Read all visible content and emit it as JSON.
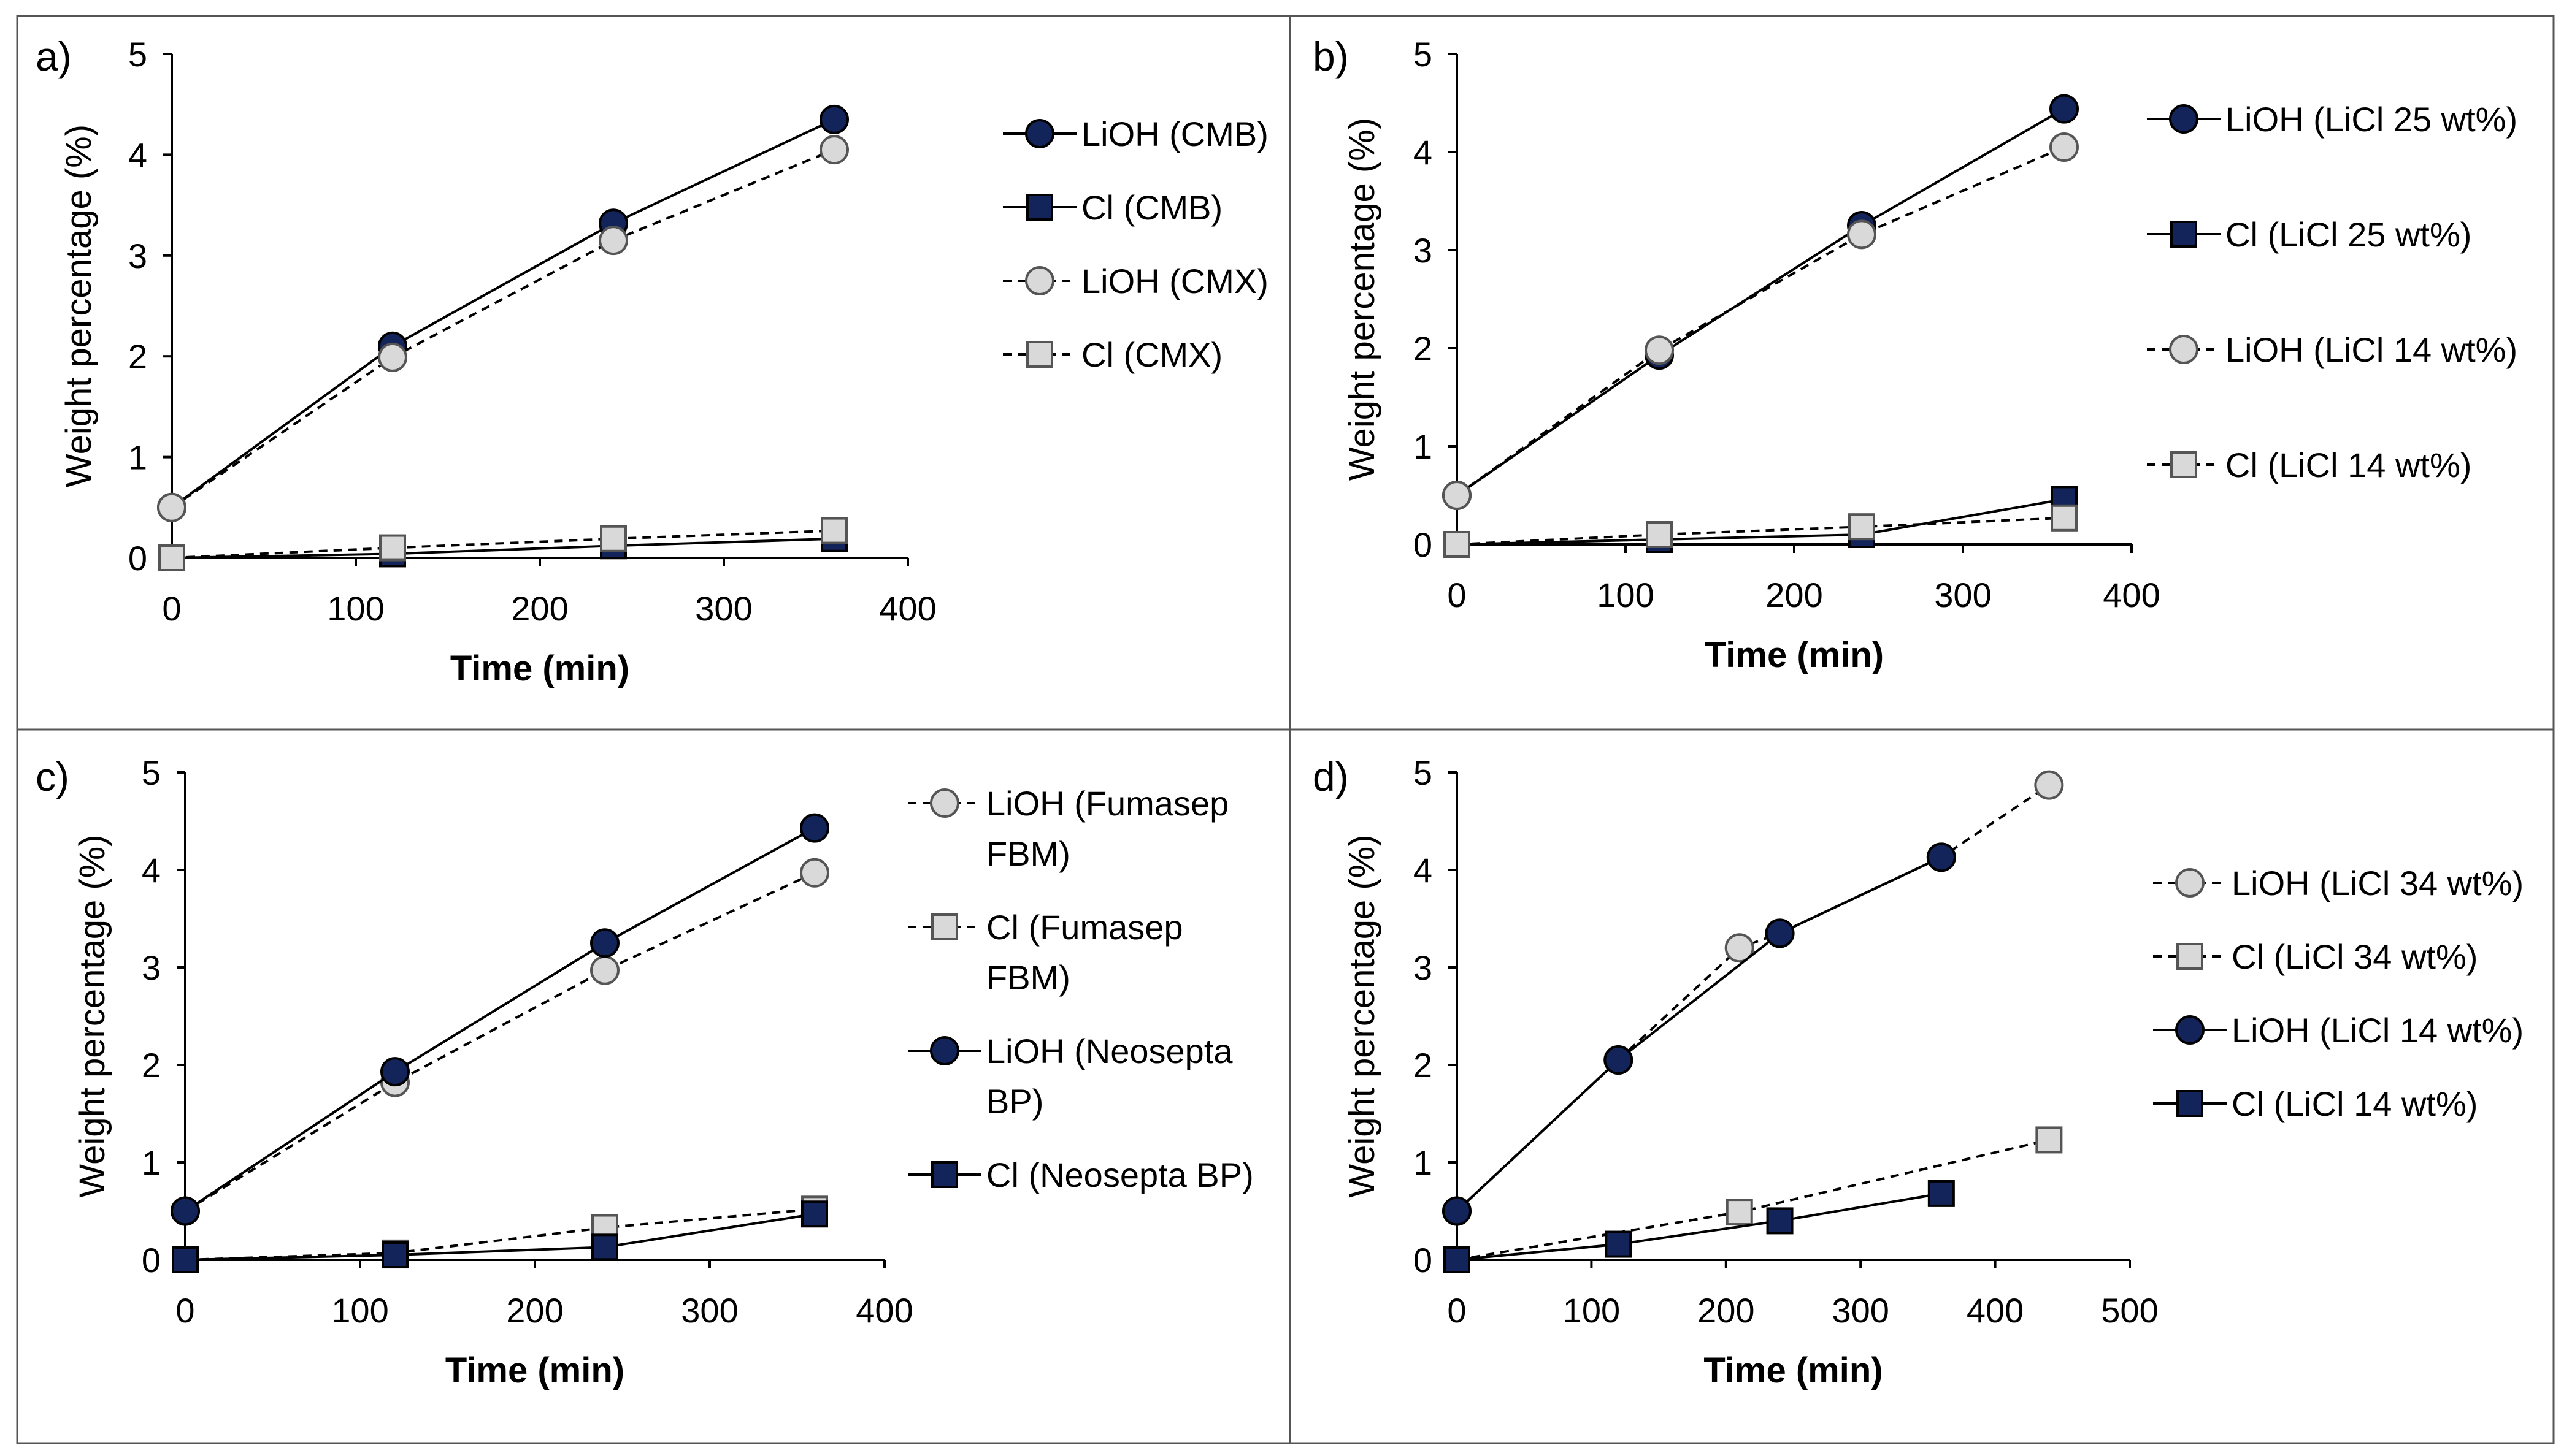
{
  "colors": {
    "navy": "#13245a",
    "light_fill": "#d9d9d9",
    "light_stroke": "#555555",
    "frame": "#555555"
  },
  "chart_data": [
    {
      "label": "a)",
      "type": "line",
      "xlabel": "Time (min)",
      "ylabel": "Weight percentage (%)",
      "xlim": [
        0,
        400
      ],
      "ylim": [
        0,
        5
      ],
      "xticks": [
        0,
        100,
        200,
        300,
        400
      ],
      "yticks": [
        0,
        1,
        2,
        3,
        4,
        5
      ],
      "x_tick_labels": [
        "0",
        "100",
        "200",
        "300",
        "400"
      ],
      "y_tick_labels": [
        "0",
        "1",
        "2",
        "3",
        "4",
        "5"
      ],
      "legend_position": "right",
      "series": [
        {
          "name": "LiOH (CMB)",
          "lines": [
            "LiOH (CMB)"
          ],
          "marker": "circle",
          "style": "solid",
          "fill": "navy",
          "x": [
            0,
            120,
            240,
            360
          ],
          "y": [
            0.5,
            2.1,
            3.32,
            4.35
          ]
        },
        {
          "name": "Cl (CMB)",
          "lines": [
            "Cl (CMB)"
          ],
          "marker": "square",
          "style": "solid",
          "fill": "navy",
          "x": [
            0,
            120,
            240,
            360
          ],
          "y": [
            0.0,
            0.04,
            0.12,
            0.19
          ]
        },
        {
          "name": "LiOH (CMX)",
          "lines": [
            "LiOH (CMX)"
          ],
          "marker": "circle",
          "style": "dashed",
          "fill": "light",
          "x": [
            0,
            120,
            240,
            360
          ],
          "y": [
            0.5,
            1.99,
            3.15,
            4.05
          ]
        },
        {
          "name": "Cl (CMX)",
          "lines": [
            "Cl (CMX)"
          ],
          "marker": "square",
          "style": "dashed",
          "fill": "light",
          "x": [
            0,
            120,
            240,
            360
          ],
          "y": [
            0.0,
            0.1,
            0.19,
            0.27
          ]
        }
      ]
    },
    {
      "label": "b)",
      "type": "line",
      "xlabel": "Time (min)",
      "ylabel": "Weight percentage (%)",
      "xlim": [
        0,
        400
      ],
      "ylim": [
        0,
        5
      ],
      "xticks": [
        0,
        100,
        200,
        300,
        400
      ],
      "yticks": [
        0,
        1,
        2,
        3,
        4,
        5
      ],
      "x_tick_labels": [
        "0",
        "100",
        "200",
        "300",
        "400"
      ],
      "y_tick_labels": [
        "0",
        "1",
        "2",
        "3",
        "4",
        "5"
      ],
      "legend_position": "right",
      "series": [
        {
          "name": "LiOH (LiCl 25 wt%)",
          "lines": [
            "LiOH (LiCl 25 wt%)"
          ],
          "marker": "circle",
          "style": "solid",
          "fill": "navy",
          "x": [
            0,
            120,
            240,
            360
          ],
          "y": [
            0.5,
            1.93,
            3.25,
            4.44
          ]
        },
        {
          "name": "Cl (LiCl 25 wt%)",
          "lines": [
            "Cl (LiCl 25 wt%)"
          ],
          "marker": "square",
          "style": "solid",
          "fill": "navy",
          "x": [
            0,
            120,
            240,
            360
          ],
          "y": [
            0.0,
            0.05,
            0.1,
            0.46
          ]
        },
        {
          "name": "LiOH (LiCl 14 wt%)",
          "lines": [
            "LiOH (LiCl 14 wt%)"
          ],
          "marker": "circle",
          "style": "dashed",
          "fill": "light",
          "x": [
            0,
            120,
            240,
            360
          ],
          "y": [
            0.5,
            1.98,
            3.16,
            4.05
          ]
        },
        {
          "name": "Cl (LiCl 14 wt%)",
          "lines": [
            "Cl (LiCl 14 wt%)"
          ],
          "marker": "square",
          "style": "dashed",
          "fill": "light",
          "x": [
            0,
            120,
            240,
            360
          ],
          "y": [
            0.0,
            0.1,
            0.18,
            0.27
          ]
        }
      ]
    },
    {
      "label": "c)",
      "type": "line",
      "xlabel": "Time (min)",
      "ylabel": "Weight percentage (%)",
      "xlim": [
        0,
        400
      ],
      "ylim": [
        0,
        5
      ],
      "xticks": [
        0,
        100,
        200,
        300,
        400
      ],
      "yticks": [
        0,
        1,
        2,
        3,
        4,
        5
      ],
      "x_tick_labels": [
        "0",
        "100",
        "200",
        "300",
        "400"
      ],
      "y_tick_labels": [
        "0",
        "1",
        "2",
        "3",
        "4",
        "5"
      ],
      "legend_position": "right",
      "series": [
        {
          "name": "LiOH (Fumasep FBM)",
          "lines": [
            "LiOH (Fumasep",
            "FBM)"
          ],
          "marker": "circle",
          "style": "dashed",
          "fill": "light",
          "x": [
            0,
            120,
            240,
            360
          ],
          "y": [
            0.5,
            1.82,
            2.97,
            3.97
          ]
        },
        {
          "name": "Cl (Fumasep FBM)",
          "lines": [
            "Cl (Fumasep",
            "FBM)"
          ],
          "marker": "square",
          "style": "dashed",
          "fill": "light",
          "x": [
            0,
            120,
            240,
            360
          ],
          "y": [
            0.0,
            0.07,
            0.33,
            0.52
          ]
        },
        {
          "name": "LiOH (Neosepta BP)",
          "lines": [
            "LiOH (Neosepta",
            "BP)"
          ],
          "marker": "circle",
          "style": "solid",
          "fill": "navy",
          "x": [
            0,
            120,
            240,
            360
          ],
          "y": [
            0.5,
            1.93,
            3.25,
            4.43
          ]
        },
        {
          "name": "Cl (Neosepta BP)",
          "lines": [
            "Cl (Neosepta BP)"
          ],
          "marker": "square",
          "style": "solid",
          "fill": "navy",
          "x": [
            0,
            120,
            240,
            360
          ],
          "y": [
            0.0,
            0.05,
            0.13,
            0.47
          ]
        }
      ]
    },
    {
      "label": "d)",
      "type": "line",
      "xlabel": "Time (min)",
      "ylabel": "Weight percentage (%)",
      "xlim": [
        0,
        500
      ],
      "ylim": [
        0,
        5
      ],
      "xticks": [
        0,
        100,
        200,
        300,
        400,
        500
      ],
      "yticks": [
        0,
        1,
        2,
        3,
        4,
        5
      ],
      "x_tick_labels": [
        "0",
        "100",
        "200",
        "300",
        "400",
        "500"
      ],
      "y_tick_labels": [
        "0",
        "1",
        "2",
        "3",
        "4",
        "5"
      ],
      "legend_position": "right",
      "series": [
        {
          "name": "LiOH (LiCl 34 wt%)",
          "lines": [
            "LiOH (LiCl 34 wt%)"
          ],
          "marker": "circle",
          "style": "dashed",
          "fill": "light",
          "x": [
            0,
            120,
            210,
            240,
            360,
            440
          ],
          "y": [
            0.5,
            2.05,
            3.2,
            3.35,
            4.13,
            4.87
          ]
        },
        {
          "name": "Cl (LiCl 34 wt%)",
          "lines": [
            "Cl (LiCl 34 wt%)"
          ],
          "marker": "square",
          "style": "dashed",
          "fill": "light",
          "x": [
            0,
            210,
            440
          ],
          "y": [
            0.0,
            0.49,
            1.23
          ]
        },
        {
          "name": "LiOH (LiCl 14 wt%)",
          "lines": [
            "LiOH (LiCl 14 wt%)"
          ],
          "marker": "circle",
          "style": "solid",
          "fill": "navy",
          "x": [
            0,
            120,
            240,
            360
          ],
          "y": [
            0.5,
            2.05,
            3.35,
            4.13
          ]
        },
        {
          "name": "Cl (LiCl 14 wt%)",
          "lines": [
            "Cl (LiCl 14 wt%)"
          ],
          "marker": "square",
          "style": "solid",
          "fill": "navy",
          "x": [
            0,
            120,
            240,
            360
          ],
          "y": [
            0.0,
            0.16,
            0.4,
            0.68
          ]
        }
      ]
    }
  ]
}
